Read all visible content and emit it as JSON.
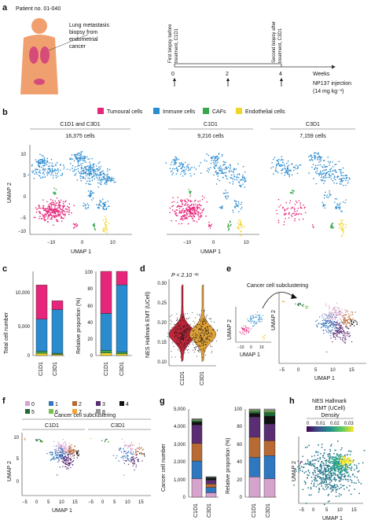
{
  "colors": {
    "tumoural": "#e6267a",
    "immune": "#2b8bcf",
    "caf": "#36a84a",
    "endothelial": "#f2d52a",
    "c0": "#d6a3cc",
    "c1": "#2f78c0",
    "c2": "#b86a34",
    "c3": "#5b2d73",
    "c4": "#111111",
    "c5": "#1e6b3a",
    "c6": "#74c04a",
    "c7": "#f0a43a",
    "c8": "#999999"
  },
  "panel_a": {
    "label": "a",
    "patient": "Patient no. 01-040",
    "biopsy_lines": [
      "Lung metastasis",
      "biopsy from",
      "endometrial",
      "cancer"
    ],
    "first_biopsy": [
      "First biopsy before",
      "treatment, C1D1"
    ],
    "second_biopsy": [
      "Second biopsy after",
      "treatment, C3D1"
    ],
    "ticks": [
      "0",
      "2",
      "4"
    ],
    "weeks": "Weeks",
    "injection": [
      "NP137 injection",
      "(14 mg kg⁻¹)"
    ]
  },
  "panel_b": {
    "label": "b",
    "legend": [
      "Tumoural cells",
      "Immune cells",
      "CAFs",
      "Endothelial cells"
    ],
    "umaps": [
      {
        "title": "C1D1 and C3D1",
        "count": "16,375 cells"
      },
      {
        "title": "C1D1",
        "count": "9,216 cells"
      },
      {
        "title": "C3D1",
        "count": "7,159 cells"
      }
    ],
    "ylabel": "UMAP 2",
    "xlabel": "UMAP 1",
    "yticks": [
      "10",
      "5",
      "0",
      "−5",
      "−10"
    ],
    "xticks": [
      "−10",
      "0",
      "10"
    ]
  },
  "panel_c": {
    "label": "c",
    "y1": "Total cell number",
    "y2": "Relative proportion (%)",
    "y1ticks": [
      "0",
      "5,000",
      "10,000"
    ],
    "y2ticks": [
      "0",
      "20",
      "40",
      "60",
      "80",
      "100"
    ],
    "x": [
      "C1D1",
      "C3D1"
    ]
  },
  "panel_d": {
    "label": "d",
    "p": "P < 2.10⁻¹⁶",
    "ylabel": "NES Hallmark EMT (UCell)",
    "yticks": [
      "0.10",
      "0.15",
      "0.20",
      "0.25",
      "0.30"
    ],
    "x": [
      "C1D1",
      "C3D1"
    ]
  },
  "panel_e": {
    "label": "e",
    "title": "Cancer cell subclustering",
    "ylabel": "UMAP 2",
    "xlabel": "UMAP 1",
    "inset_x": [
      "−10",
      "0",
      "10"
    ],
    "inset_y": [
      "10",
      "0",
      "−10"
    ],
    "xticks": [
      "−5",
      "0",
      "5",
      "10",
      "15"
    ]
  },
  "panel_f": {
    "label": "f",
    "legend": [
      "0",
      "1",
      "2",
      "3",
      "4",
      "5",
      "6",
      "7",
      "8"
    ],
    "title": "Cancer cell subclustering",
    "sub": [
      "C1D1",
      "C3D1"
    ],
    "ylabel": "UMAP 2",
    "xlabel": "UMAP 1",
    "yticks": [
      "10",
      "5",
      "0"
    ],
    "xticks": [
      "−5",
      "0",
      "5",
      "10",
      "15",
      "−5",
      "0",
      "5",
      "10",
      "15"
    ]
  },
  "panel_g": {
    "label": "g",
    "y1": "Cancer cell number",
    "y2": "Relative proportion (%)",
    "y1ticks": [
      "0",
      "1,000",
      "2,000",
      "3,000",
      "4,000",
      "5,000"
    ],
    "y2ticks": [
      "0",
      "20",
      "40",
      "60",
      "80",
      "100"
    ],
    "x": [
      "C1D1",
      "C3D1"
    ]
  },
  "panel_h": {
    "label": "h",
    "title": [
      "NES Hallmark",
      "EMT (UCell)"
    ],
    "density": "Density",
    "cticks": [
      "0",
      "0.01",
      "0.02",
      "0.03"
    ],
    "ylabel": "UMAP 2",
    "xlabel": "UMAP 1",
    "xticks": [
      "−5",
      "0",
      "5",
      "10",
      "15"
    ]
  },
  "chart_data": [
    {
      "type": "bar",
      "panel": "c-left",
      "categories": [
        "C1D1",
        "C3D1"
      ],
      "ylabel": "Total cell number",
      "ylim": [
        0,
        11000
      ],
      "series": [
        {
          "name": "Endothelial cells",
          "values": [
            300,
            150
          ]
        },
        {
          "name": "CAFs",
          "values": [
            250,
            150
          ]
        },
        {
          "name": "Immune cells",
          "values": [
            4200,
            5700
          ]
        },
        {
          "name": "Tumoural cells",
          "values": [
            4466,
            1159
          ]
        }
      ]
    },
    {
      "type": "bar",
      "panel": "c-right",
      "categories": [
        "C1D1",
        "C3D1"
      ],
      "ylabel": "Relative proportion (%)",
      "ylim": [
        0,
        100
      ],
      "series": [
        {
          "name": "Endothelial cells",
          "values": [
            3,
            2
          ]
        },
        {
          "name": "CAFs",
          "values": [
            3,
            2
          ]
        },
        {
          "name": "Immune cells",
          "values": [
            44,
            80
          ]
        },
        {
          "name": "Tumoural cells",
          "values": [
            50,
            16
          ]
        }
      ]
    },
    {
      "type": "bar",
      "panel": "g-left",
      "categories": [
        "C1D1",
        "C3D1"
      ],
      "ylabel": "Cancer cell number",
      "ylim": [
        0,
        5000
      ],
      "series": [
        {
          "name": "0",
          "values": [
            1050,
            250
          ]
        },
        {
          "name": "1",
          "values": [
            1000,
            300
          ]
        },
        {
          "name": "2",
          "values": [
            1000,
            200
          ]
        },
        {
          "name": "3",
          "values": [
            1050,
            220
          ]
        },
        {
          "name": "4",
          "values": [
            150,
            100
          ]
        },
        {
          "name": "5",
          "values": [
            80,
            40
          ]
        },
        {
          "name": "6",
          "values": [
            60,
            20
          ]
        },
        {
          "name": "8",
          "values": [
            60,
            30
          ]
        }
      ]
    },
    {
      "type": "bar",
      "panel": "g-right",
      "categories": [
        "C1D1",
        "C3D1"
      ],
      "ylabel": "Relative proportion (%)",
      "ylim": [
        0,
        100
      ],
      "series": [
        {
          "name": "0",
          "values": [
            23,
            21
          ]
        },
        {
          "name": "1",
          "values": [
            22,
            26
          ]
        },
        {
          "name": "2",
          "values": [
            23,
            17
          ]
        },
        {
          "name": "3",
          "values": [
            23,
            19
          ]
        },
        {
          "name": "4",
          "values": [
            4,
            9
          ]
        },
        {
          "name": "5",
          "values": [
            2,
            4
          ]
        },
        {
          "name": "6",
          "values": [
            1.5,
            2
          ]
        },
        {
          "name": "8",
          "values": [
            1.5,
            2
          ]
        }
      ]
    }
  ]
}
